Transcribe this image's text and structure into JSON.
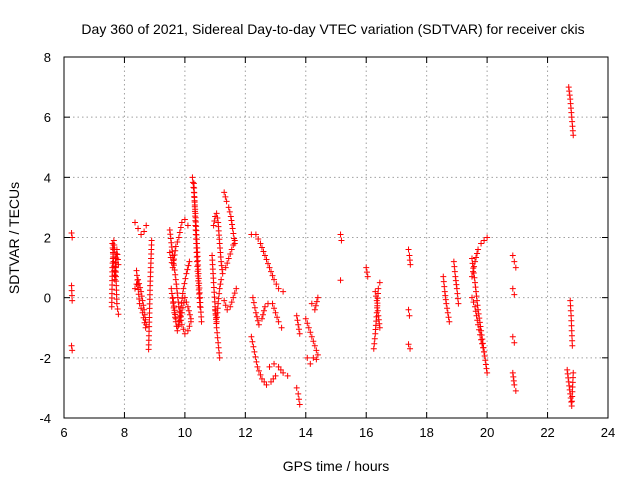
{
  "chart_data": {
    "type": "scatter",
    "title": "Day 360 of 2021, Sidereal Day-to-day VTEC variation (SDTVAR) for receiver ckis",
    "xlabel": "GPS time / hours",
    "ylabel": "SDTVAR / TECUs",
    "xlim": [
      6,
      24
    ],
    "ylim": [
      -4,
      8
    ],
    "xticks": [
      6,
      8,
      10,
      12,
      14,
      16,
      18,
      20,
      22,
      24
    ],
    "yticks": [
      -4,
      -2,
      0,
      2,
      4,
      6,
      8
    ],
    "grid": true,
    "marker": "+",
    "color": "#ff0000",
    "segments": [
      [
        [
          6.25,
          2.15
        ],
        [
          6.27,
          2.0
        ]
      ],
      [
        [
          6.25,
          0.4
        ],
        [
          6.27,
          -0.1
        ]
      ],
      [
        [
          6.25,
          -1.6
        ],
        [
          6.27,
          -1.75
        ]
      ],
      [
        [
          7.58,
          -0.3
        ],
        [
          7.6,
          1.0
        ],
        [
          7.65,
          1.9
        ],
        [
          7.7,
          1.3
        ],
        [
          7.75,
          -0.2
        ],
        [
          7.8,
          -0.55
        ]
      ],
      [
        [
          7.6,
          1.8
        ],
        [
          7.68,
          0.6
        ],
        [
          7.75,
          1.6
        ],
        [
          7.8,
          1.1
        ]
      ],
      [
        [
          8.35,
          2.5
        ],
        [
          8.45,
          2.3
        ],
        [
          8.55,
          2.1
        ],
        [
          8.65,
          2.2
        ],
        [
          8.72,
          2.4
        ]
      ],
      [
        [
          8.35,
          0.3
        ],
        [
          8.45,
          0.6
        ],
        [
          8.55,
          0.2
        ],
        [
          8.65,
          -0.4
        ],
        [
          8.72,
          -0.9
        ]
      ],
      [
        [
          8.4,
          0.9
        ],
        [
          8.5,
          -0.2
        ],
        [
          8.6,
          -0.5
        ],
        [
          8.7,
          -1.0
        ]
      ],
      [
        [
          8.9,
          1.9
        ],
        [
          8.85,
          0.4
        ],
        [
          8.8,
          -1.72
        ]
      ],
      [
        [
          9.5,
          2.25
        ],
        [
          9.6,
          1.4
        ],
        [
          9.7,
          0.6
        ],
        [
          9.8,
          -0.3
        ],
        [
          9.9,
          -0.9
        ],
        [
          10.0,
          -1.2
        ],
        [
          10.1,
          -1.1
        ],
        [
          10.2,
          -0.8
        ]
      ],
      [
        [
          9.5,
          1.5
        ],
        [
          9.6,
          1.0
        ],
        [
          9.7,
          1.7
        ],
        [
          9.8,
          2.0
        ],
        [
          9.9,
          2.5
        ],
        [
          10.0,
          2.6
        ],
        [
          10.1,
          2.4
        ]
      ],
      [
        [
          9.55,
          0.3
        ],
        [
          9.65,
          -0.5
        ],
        [
          9.75,
          -1.1
        ],
        [
          9.85,
          -0.5
        ],
        [
          9.95,
          0.3
        ],
        [
          10.05,
          0.8
        ],
        [
          10.15,
          1.2
        ]
      ],
      [
        [
          9.6,
          0.0
        ],
        [
          9.7,
          -0.7
        ],
        [
          9.8,
          -0.9
        ],
        [
          9.9,
          -0.5
        ],
        [
          10.0,
          0.0
        ],
        [
          10.1,
          -0.3
        ],
        [
          10.2,
          -0.7
        ]
      ],
      [
        [
          10.25,
          4.0
        ],
        [
          10.3,
          3.5
        ],
        [
          10.35,
          2.8
        ],
        [
          10.4,
          1.8
        ],
        [
          10.45,
          0.8
        ],
        [
          10.5,
          0.0
        ],
        [
          10.55,
          -0.8
        ]
      ],
      [
        [
          10.3,
          3.8
        ],
        [
          10.35,
          2.4
        ],
        [
          10.4,
          1.2
        ],
        [
          10.45,
          0.4
        ],
        [
          10.5,
          -0.3
        ]
      ],
      [
        [
          10.9,
          1.4
        ],
        [
          10.95,
          0.5
        ],
        [
          11.0,
          -0.3
        ],
        [
          11.05,
          -1.0
        ],
        [
          11.1,
          -1.5
        ],
        [
          11.15,
          -2.0
        ]
      ],
      [
        [
          10.95,
          2.4
        ],
        [
          11.0,
          2.7
        ],
        [
          11.05,
          2.8
        ],
        [
          11.1,
          2.5
        ],
        [
          11.15,
          1.8
        ],
        [
          11.2,
          1.2
        ],
        [
          11.25,
          0.8
        ]
      ],
      [
        [
          11.0,
          -0.4
        ],
        [
          11.05,
          -0.8
        ],
        [
          11.1,
          -0.2
        ],
        [
          11.15,
          0.3
        ],
        [
          11.2,
          0.6
        ]
      ],
      [
        [
          11.3,
          3.5
        ],
        [
          11.38,
          3.2
        ],
        [
          11.45,
          3.0
        ],
        [
          11.52,
          2.7
        ],
        [
          11.58,
          2.3
        ],
        [
          11.65,
          1.8
        ]
      ],
      [
        [
          11.3,
          -0.1
        ],
        [
          11.4,
          -0.4
        ],
        [
          11.5,
          -0.3
        ],
        [
          11.6,
          0.0
        ],
        [
          11.7,
          0.3
        ]
      ],
      [
        [
          11.35,
          1.0
        ],
        [
          11.45,
          1.3
        ],
        [
          11.55,
          1.6
        ],
        [
          11.65,
          1.9
        ]
      ],
      [
        [
          12.2,
          2.1
        ],
        [
          12.35,
          2.1
        ],
        [
          12.5,
          1.8
        ],
        [
          12.65,
          1.4
        ],
        [
          12.8,
          1.0
        ],
        [
          12.95,
          0.6
        ],
        [
          13.1,
          0.3
        ],
        [
          13.25,
          0.2
        ]
      ],
      [
        [
          12.2,
          -1.3
        ],
        [
          12.3,
          -1.8
        ],
        [
          12.4,
          -2.3
        ],
        [
          12.55,
          -2.7
        ],
        [
          12.7,
          -2.9
        ],
        [
          12.85,
          -2.8
        ],
        [
          13.0,
          -2.6
        ]
      ],
      [
        [
          12.25,
          0.0
        ],
        [
          12.35,
          -0.5
        ],
        [
          12.45,
          -0.9
        ],
        [
          12.55,
          -0.7
        ],
        [
          12.65,
          -0.3
        ],
        [
          12.75,
          -0.2
        ]
      ],
      [
        [
          12.8,
          -2.3
        ],
        [
          12.95,
          -2.2
        ],
        [
          13.1,
          -2.3
        ],
        [
          13.25,
          -2.5
        ],
        [
          13.4,
          -2.6
        ]
      ],
      [
        [
          12.9,
          -0.2
        ],
        [
          13.0,
          -0.5
        ],
        [
          13.1,
          -0.8
        ],
        [
          13.2,
          -1.0
        ]
      ],
      [
        [
          13.7,
          -0.6
        ],
        [
          13.75,
          -0.9
        ],
        [
          13.8,
          -1.2
        ]
      ],
      [
        [
          13.7,
          -3.0
        ],
        [
          13.75,
          -3.2
        ],
        [
          13.8,
          -3.55
        ]
      ],
      [
        [
          14.0,
          -0.7
        ],
        [
          14.1,
          -1.0
        ],
        [
          14.2,
          -1.3
        ],
        [
          14.3,
          -1.6
        ],
        [
          14.4,
          -1.9
        ]
      ],
      [
        [
          14.05,
          -2.0
        ],
        [
          14.15,
          -2.2
        ],
        [
          14.25,
          -2.0
        ],
        [
          14.35,
          -2.05
        ]
      ],
      [
        [
          14.2,
          -0.2
        ],
        [
          14.3,
          -0.4
        ],
        [
          14.4,
          0.0
        ]
      ],
      [
        [
          15.15,
          2.1
        ],
        [
          15.18,
          1.9
        ]
      ],
      [
        [
          15.15,
          0.58
        ]
      ],
      [
        [
          16.0,
          1.0
        ],
        [
          16.05,
          0.7
        ]
      ],
      [
        [
          16.25,
          -1.7
        ],
        [
          16.3,
          -1.2
        ],
        [
          16.35,
          -0.5
        ],
        [
          16.4,
          0.3
        ],
        [
          16.45,
          0.5
        ]
      ],
      [
        [
          16.3,
          0.2
        ],
        [
          16.35,
          -0.1
        ],
        [
          16.4,
          -0.6
        ],
        [
          16.45,
          -1.0
        ]
      ],
      [
        [
          17.4,
          1.6
        ],
        [
          17.43,
          1.4
        ],
        [
          17.46,
          1.1
        ]
      ],
      [
        [
          17.4,
          -0.4
        ],
        [
          17.43,
          -0.6
        ]
      ],
      [
        [
          17.4,
          -1.55
        ],
        [
          17.45,
          -1.7
        ]
      ],
      [
        [
          18.55,
          0.7
        ],
        [
          18.6,
          0.2
        ],
        [
          18.65,
          -0.2
        ],
        [
          18.7,
          -0.5
        ],
        [
          18.75,
          -0.8
        ]
      ],
      [
        [
          18.9,
          1.2
        ],
        [
          18.95,
          0.7
        ],
        [
          19.0,
          0.3
        ],
        [
          19.05,
          -0.2
        ]
      ],
      [
        [
          19.5,
          0.7
        ],
        [
          19.6,
          1.2
        ],
        [
          19.7,
          1.6
        ],
        [
          19.8,
          1.8
        ],
        [
          19.9,
          1.9
        ],
        [
          20.0,
          2.0
        ]
      ],
      [
        [
          19.5,
          1.3
        ],
        [
          19.6,
          0.5
        ],
        [
          19.7,
          -0.4
        ],
        [
          19.8,
          -1.1
        ],
        [
          19.9,
          -1.8
        ],
        [
          20.0,
          -2.5
        ]
      ],
      [
        [
          19.5,
          0.0
        ],
        [
          19.6,
          -0.3
        ],
        [
          19.7,
          -0.9
        ],
        [
          19.8,
          -1.4
        ],
        [
          19.9,
          -1.8
        ]
      ],
      [
        [
          20.85,
          1.4
        ],
        [
          20.9,
          1.2
        ],
        [
          20.95,
          1.0
        ]
      ],
      [
        [
          20.85,
          0.3
        ],
        [
          20.9,
          0.1
        ]
      ],
      [
        [
          20.85,
          -1.3
        ],
        [
          20.9,
          -1.5
        ]
      ],
      [
        [
          20.85,
          -2.5
        ],
        [
          20.9,
          -2.9
        ],
        [
          20.95,
          -3.1
        ]
      ],
      [
        [
          22.7,
          7.0
        ],
        [
          22.75,
          6.6
        ],
        [
          22.8,
          6.0
        ],
        [
          22.85,
          5.4
        ]
      ],
      [
        [
          22.75,
          -0.1
        ],
        [
          22.78,
          -0.6
        ],
        [
          22.8,
          -1.1
        ],
        [
          22.82,
          -1.6
        ]
      ],
      [
        [
          22.65,
          -2.4
        ],
        [
          22.7,
          -2.8
        ],
        [
          22.75,
          -3.2
        ],
        [
          22.8,
          -3.6
        ],
        [
          22.85,
          -2.5
        ]
      ]
    ]
  }
}
